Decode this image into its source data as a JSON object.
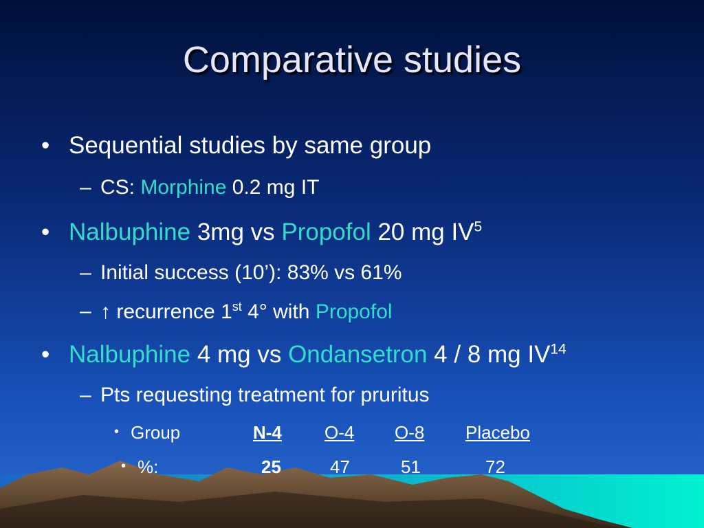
{
  "title": "Comparative studies",
  "lines": [
    {
      "parts": [
        "Sequential studies by same group"
      ]
    },
    {
      "parts": [
        "CS: ",
        "Morphine",
        " 0.2 mg IT"
      ]
    },
    {
      "parts": [
        "Nalbuphine",
        " 3mg vs ",
        "Propofol",
        " 20 mg IV",
        "5"
      ]
    },
    {
      "parts": [
        "Initial success (10’): 83% vs 61%"
      ]
    },
    {
      "parts": [
        "↑ recurrence 1",
        "st",
        " 4° with ",
        "Propofol"
      ]
    },
    {
      "parts": [
        "Nalbuphine",
        " 4 mg vs ",
        "Ondansetron",
        " 4 / 8 mg IV",
        "14"
      ]
    },
    {
      "parts": [
        "Pts requesting treatment for pruritus"
      ]
    }
  ],
  "table": {
    "header": [
      "Group",
      "N-4",
      "O-4",
      "O-8",
      "Placebo"
    ],
    "rows": [
      [
        "%:",
        25,
        47,
        51,
        72
      ]
    ]
  }
}
